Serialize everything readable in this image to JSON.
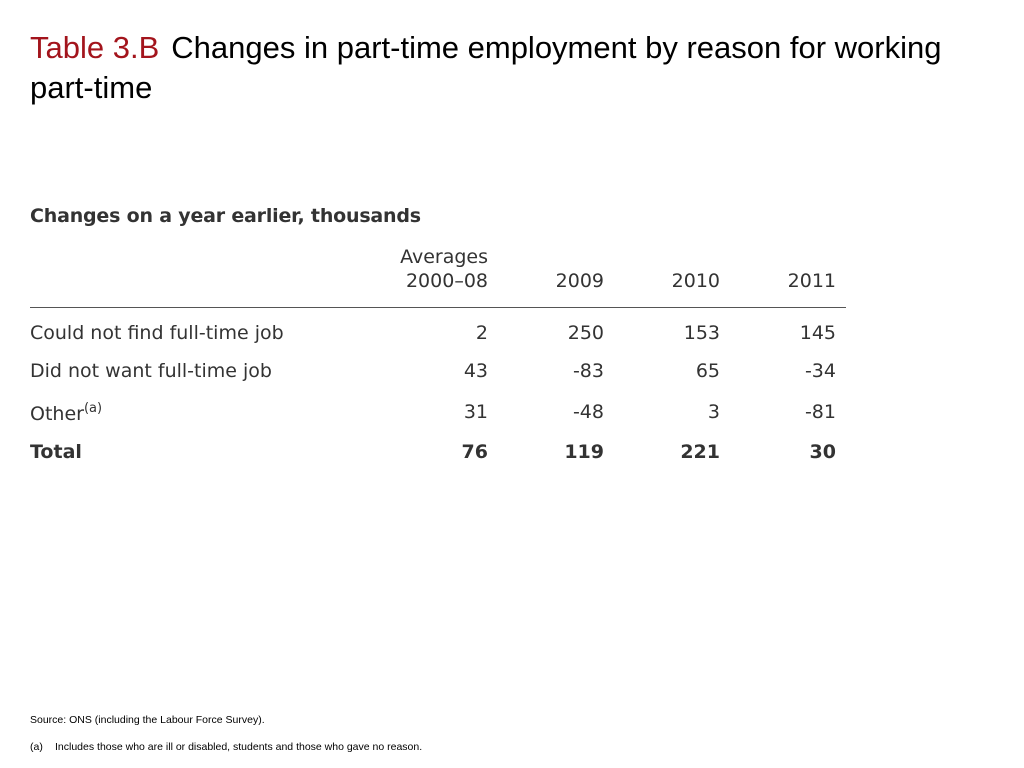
{
  "title": {
    "label": "Table 3.B",
    "text": "Changes in part-time employment by reason for working part-time"
  },
  "table": {
    "subtitle": "Changes on a year earlier, thousands",
    "columns": [
      {
        "line1": "Averages",
        "line2": "2000–08"
      },
      {
        "line1": "",
        "line2": "2009"
      },
      {
        "line1": "",
        "line2": "2010"
      },
      {
        "line1": "",
        "line2": "2011"
      }
    ],
    "rows": [
      {
        "label": "Could not find full-time job",
        "note": "",
        "values": [
          "2",
          "250",
          "153",
          "145"
        ]
      },
      {
        "label": "Did not want full-time job",
        "note": "",
        "values": [
          "43",
          "-83",
          "65",
          "-34"
        ]
      },
      {
        "label": "Other",
        "note": "(a)",
        "values": [
          "31",
          "-48",
          "3",
          "-81"
        ]
      },
      {
        "label": "Total",
        "note": "",
        "values": [
          "76",
          "119",
          "221",
          "30"
        ]
      }
    ]
  },
  "footer": {
    "source": "Source:  ONS (including the Labour Force Survey).",
    "footnote_key": "(a)",
    "footnote_text": "Includes those who are ill or disabled, students and those who gave no reason."
  }
}
